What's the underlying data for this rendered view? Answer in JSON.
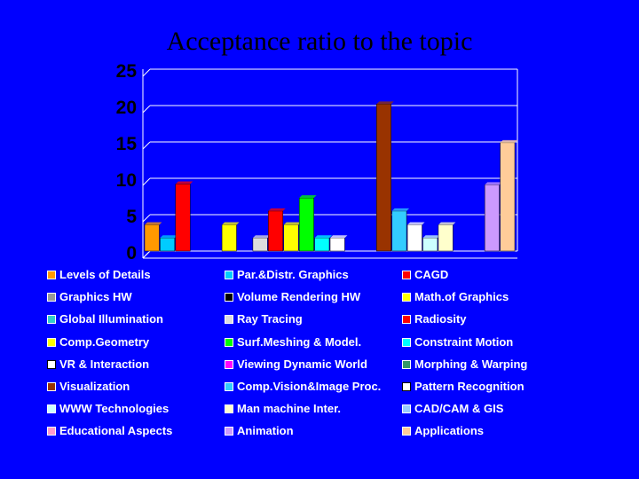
{
  "chart_data": {
    "type": "bar",
    "title": "Acceptance ratio to the topic",
    "ylim": [
      0,
      25
    ],
    "yticks": [
      0,
      5,
      10,
      15,
      20,
      25
    ],
    "grid": true,
    "legend_position": "bottom",
    "categories": [
      "Levels of Details",
      "Par.&Distr. Graphics",
      "CAGD",
      "Graphics HW",
      "Volume Rendering HW",
      "Math.of Graphics",
      "Global Illumination",
      "Ray Tracing",
      "Radiosity",
      "Comp.Geometry",
      "Surf.Meshing & Model.",
      "Constraint Motion",
      "VR & Interaction",
      "Viewing Dynamic World",
      "Morphing & Warping",
      "Visualization",
      "Comp.Vision&Image Proc.",
      "Pattern Recognition",
      "WWW Technologies",
      "Man machine Inter.",
      "CAD/CAM & GIS",
      "Educational Aspects",
      "Animation",
      "Applications"
    ],
    "values": [
      3.6,
      1.8,
      9.2,
      0,
      0,
      3.6,
      0,
      1.8,
      5.5,
      3.6,
      7.3,
      1.8,
      1.8,
      0,
      0,
      20.2,
      5.5,
      3.6,
      1.8,
      3.6,
      0,
      0,
      9.1,
      14.9
    ],
    "bar_order": [
      0,
      1,
      2,
      3,
      4,
      5,
      6,
      7,
      8,
      9,
      10,
      11,
      12,
      13,
      14,
      15,
      16,
      17,
      18,
      19,
      20,
      21,
      22,
      23
    ],
    "colors": [
      "#ff9900",
      "#00ccff",
      "#ff0000",
      "#999999",
      "#000000",
      "#ffff00",
      "#33cccc",
      "#dddddd",
      "#ff0000",
      "#ffff00",
      "#00ff00",
      "#00ffff",
      "#ffffff",
      "#ff00ff",
      "#339966",
      "#993300",
      "#33ccff",
      "#ffffff",
      "#ccffff",
      "#ffffcc",
      "#99ccff",
      "#ff99cc",
      "#cc99ff",
      "#ffcc99"
    ]
  }
}
